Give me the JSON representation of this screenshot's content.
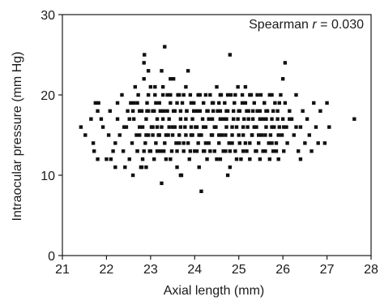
{
  "chart_data": {
    "type": "scatter",
    "title": "",
    "xlabel": "Axial length (mm)",
    "ylabel": "Intraocular pressure (mm Hg)",
    "xlim": [
      21,
      28
    ],
    "ylim": [
      0,
      30
    ],
    "xticks": [
      21,
      22,
      23,
      24,
      25,
      26,
      27,
      28
    ],
    "yticks": [
      0,
      10,
      20,
      30
    ],
    "grid": false,
    "annotation": {
      "prefix": "Spearman ",
      "variable": "r",
      "suffix": " = 0.030"
    },
    "marker_color": "#111111",
    "points": [
      [
        21.42,
        16
      ],
      [
        21.52,
        15
      ],
      [
        21.65,
        17
      ],
      [
        21.7,
        14
      ],
      [
        21.72,
        13
      ],
      [
        21.75,
        19
      ],
      [
        21.8,
        18
      ],
      [
        21.82,
        19
      ],
      [
        21.92,
        16
      ],
      [
        22.0,
        12
      ],
      [
        22.05,
        15
      ],
      [
        22.1,
        12
      ],
      [
        22.15,
        13
      ],
      [
        22.2,
        14
      ],
      [
        22.25,
        17
      ],
      [
        22.3,
        15
      ],
      [
        22.35,
        20
      ],
      [
        22.38,
        13
      ],
      [
        22.42,
        11
      ],
      [
        22.45,
        16
      ],
      [
        22.48,
        18
      ],
      [
        22.52,
        12
      ],
      [
        22.55,
        19
      ],
      [
        22.58,
        14
      ],
      [
        22.62,
        17
      ],
      [
        22.65,
        21
      ],
      [
        22.68,
        15
      ],
      [
        22.7,
        13
      ],
      [
        22.72,
        20
      ],
      [
        22.75,
        16
      ],
      [
        22.78,
        11
      ],
      [
        22.8,
        18
      ],
      [
        22.82,
        12
      ],
      [
        22.85,
        22
      ],
      [
        22.88,
        14
      ],
      [
        22.9,
        17
      ],
      [
        22.92,
        19
      ],
      [
        22.95,
        15
      ],
      [
        22.98,
        13
      ],
      [
        23.0,
        21
      ],
      [
        23.02,
        16
      ],
      [
        23.05,
        18
      ],
      [
        23.08,
        12
      ],
      [
        23.1,
        20
      ],
      [
        23.12,
        14
      ],
      [
        23.15,
        17
      ],
      [
        23.18,
        15
      ],
      [
        23.2,
        19
      ],
      [
        23.22,
        13
      ],
      [
        23.25,
        16
      ],
      [
        23.28,
        21
      ],
      [
        23.3,
        18
      ],
      [
        23.32,
        14
      ],
      [
        23.35,
        12
      ],
      [
        23.38,
        20
      ],
      [
        23.4,
        15
      ],
      [
        23.42,
        17
      ],
      [
        23.45,
        19
      ],
      [
        23.48,
        13
      ],
      [
        23.5,
        16
      ],
      [
        23.52,
        22
      ],
      [
        23.55,
        18
      ],
      [
        23.58,
        14
      ],
      [
        23.6,
        11
      ],
      [
        23.62,
        20
      ],
      [
        23.65,
        15
      ],
      [
        23.68,
        17
      ],
      [
        23.7,
        10
      ],
      [
        23.72,
        19
      ],
      [
        23.75,
        13
      ],
      [
        23.78,
        16
      ],
      [
        23.8,
        21
      ],
      [
        23.82,
        18
      ],
      [
        23.85,
        14
      ],
      [
        23.88,
        12
      ],
      [
        23.9,
        20
      ],
      [
        23.92,
        15
      ],
      [
        23.95,
        17
      ],
      [
        23.98,
        19
      ],
      [
        24.0,
        13
      ],
      [
        24.02,
        16
      ],
      [
        24.05,
        18
      ],
      [
        24.08,
        14
      ],
      [
        24.1,
        11
      ],
      [
        24.12,
        20
      ],
      [
        24.15,
        15
      ],
      [
        24.18,
        17
      ],
      [
        24.2,
        19
      ],
      [
        24.22,
        13
      ],
      [
        24.25,
        16
      ],
      [
        24.28,
        12
      ],
      [
        24.3,
        18
      ],
      [
        24.32,
        14
      ],
      [
        24.35,
        20
      ],
      [
        24.38,
        15
      ],
      [
        24.4,
        17
      ],
      [
        24.42,
        19
      ],
      [
        24.45,
        13
      ],
      [
        24.48,
        16
      ],
      [
        24.5,
        21
      ],
      [
        24.52,
        18
      ],
      [
        24.55,
        14
      ],
      [
        24.58,
        12
      ],
      [
        24.6,
        20
      ],
      [
        24.62,
        15
      ],
      [
        24.65,
        17
      ],
      [
        24.68,
        19
      ],
      [
        24.7,
        13
      ],
      [
        24.72,
        16
      ],
      [
        24.75,
        18
      ],
      [
        24.78,
        14
      ],
      [
        24.8,
        11
      ],
      [
        24.82,
        20
      ],
      [
        24.85,
        15
      ],
      [
        24.88,
        17
      ],
      [
        24.9,
        19
      ],
      [
        24.92,
        13
      ],
      [
        24.95,
        16
      ],
      [
        24.98,
        21
      ],
      [
        25.0,
        18
      ],
      [
        25.02,
        14
      ],
      [
        25.05,
        12
      ],
      [
        25.08,
        20
      ],
      [
        25.1,
        15
      ],
      [
        25.12,
        17
      ],
      [
        25.15,
        19
      ],
      [
        25.18,
        13
      ],
      [
        25.2,
        16
      ],
      [
        25.22,
        18
      ],
      [
        25.25,
        14
      ],
      [
        25.28,
        20
      ],
      [
        25.3,
        15
      ],
      [
        25.32,
        17
      ],
      [
        25.35,
        19
      ],
      [
        25.38,
        13
      ],
      [
        25.4,
        16
      ],
      [
        25.42,
        18
      ],
      [
        25.45,
        14
      ],
      [
        25.48,
        12
      ],
      [
        25.5,
        20
      ],
      [
        25.52,
        15
      ],
      [
        25.55,
        17
      ],
      [
        25.58,
        19
      ],
      [
        25.6,
        13
      ],
      [
        25.62,
        16
      ],
      [
        25.65,
        18
      ],
      [
        25.68,
        14
      ],
      [
        25.7,
        20
      ],
      [
        25.72,
        15
      ],
      [
        25.75,
        17
      ],
      [
        25.78,
        13
      ],
      [
        25.8,
        16
      ],
      [
        25.82,
        19
      ],
      [
        25.85,
        14
      ],
      [
        25.88,
        18
      ],
      [
        25.9,
        12
      ],
      [
        25.92,
        16
      ],
      [
        25.95,
        20
      ],
      [
        25.98,
        15
      ],
      [
        26.0,
        17
      ],
      [
        26.02,
        13
      ],
      [
        26.05,
        19
      ],
      [
        26.08,
        16
      ],
      [
        26.1,
        14
      ],
      [
        26.15,
        18
      ],
      [
        26.2,
        17
      ],
      [
        26.25,
        15
      ],
      [
        26.3,
        20
      ],
      [
        26.35,
        13
      ],
      [
        26.4,
        16
      ],
      [
        26.45,
        18
      ],
      [
        26.5,
        14
      ],
      [
        26.55,
        17
      ],
      [
        26.6,
        15
      ],
      [
        26.65,
        13
      ],
      [
        26.7,
        19
      ],
      [
        26.75,
        16
      ],
      [
        26.8,
        14
      ],
      [
        26.85,
        18
      ],
      [
        26.95,
        14
      ],
      [
        27.0,
        19
      ],
      [
        27.05,
        16
      ],
      [
        27.62,
        17
      ],
      [
        22.85,
        24
      ],
      [
        22.86,
        25
      ],
      [
        23.25,
        23
      ],
      [
        23.32,
        26
      ],
      [
        23.65,
        20
      ],
      [
        23.85,
        23
      ],
      [
        24.55,
        19
      ],
      [
        24.8,
        25
      ],
      [
        24.75,
        10
      ],
      [
        24.15,
        8
      ],
      [
        23.25,
        9
      ],
      [
        23.68,
        10
      ],
      [
        22.8,
        11
      ],
      [
        22.9,
        11
      ],
      [
        26.05,
        24
      ],
      [
        26.0,
        22
      ],
      [
        25.15,
        21
      ],
      [
        22.95,
        23
      ],
      [
        23.45,
        22
      ],
      [
        23.1,
        21
      ],
      [
        22.62,
        19
      ],
      [
        26.4,
        12
      ],
      [
        22.2,
        11
      ],
      [
        22.6,
        10
      ],
      [
        21.8,
        12
      ],
      [
        21.88,
        17
      ],
      [
        22.08,
        18
      ],
      [
        22.25,
        19
      ],
      [
        22.4,
        16
      ],
      [
        22.52,
        17
      ],
      [
        22.7,
        19
      ],
      [
        22.82,
        16
      ],
      [
        22.95,
        18
      ],
      [
        23.05,
        16
      ],
      [
        23.15,
        16
      ],
      [
        23.28,
        17
      ],
      [
        23.42,
        16
      ],
      [
        23.55,
        16
      ],
      [
        23.68,
        16
      ],
      [
        23.8,
        17
      ],
      [
        23.92,
        16
      ],
      [
        24.05,
        16
      ],
      [
        24.2,
        16
      ],
      [
        24.32,
        17
      ],
      [
        24.45,
        16
      ],
      [
        24.58,
        17
      ],
      [
        24.72,
        17
      ],
      [
        24.85,
        16
      ],
      [
        24.98,
        17
      ],
      [
        25.1,
        16
      ],
      [
        25.22,
        17
      ],
      [
        25.35,
        16
      ],
      [
        25.48,
        17
      ],
      [
        25.62,
        17
      ],
      [
        25.75,
        16
      ],
      [
        25.88,
        17
      ],
      [
        26.02,
        16
      ],
      [
        26.15,
        17
      ],
      [
        26.3,
        16
      ],
      [
        22.75,
        15
      ],
      [
        22.9,
        15
      ],
      [
        23.05,
        15
      ],
      [
        23.2,
        15
      ],
      [
        23.35,
        15
      ],
      [
        23.5,
        15
      ],
      [
        23.65,
        14
      ],
      [
        23.8,
        15
      ],
      [
        23.95,
        15
      ],
      [
        24.1,
        15
      ],
      [
        24.25,
        14
      ],
      [
        24.4,
        15
      ],
      [
        24.55,
        15
      ],
      [
        24.7,
        15
      ],
      [
        24.85,
        14
      ],
      [
        25.0,
        15
      ],
      [
        25.15,
        14
      ],
      [
        25.3,
        15
      ],
      [
        25.45,
        15
      ],
      [
        25.6,
        15
      ],
      [
        25.75,
        14
      ],
      [
        25.9,
        15
      ],
      [
        22.6,
        18
      ],
      [
        22.75,
        18
      ],
      [
        22.92,
        18
      ],
      [
        23.08,
        18
      ],
      [
        23.22,
        18
      ],
      [
        23.38,
        18
      ],
      [
        23.52,
        18
      ],
      [
        23.68,
        18
      ],
      [
        23.82,
        18
      ],
      [
        23.98,
        18
      ],
      [
        24.12,
        18
      ],
      [
        24.28,
        18
      ],
      [
        24.42,
        18
      ],
      [
        24.58,
        18
      ],
      [
        24.72,
        18
      ],
      [
        24.88,
        18
      ],
      [
        25.02,
        18
      ],
      [
        25.18,
        18
      ],
      [
        25.32,
        18
      ],
      [
        25.48,
        18
      ],
      [
        25.62,
        18
      ],
      [
        25.78,
        18
      ],
      [
        22.7,
        13
      ],
      [
        22.85,
        13
      ],
      [
        23.0,
        13
      ],
      [
        23.15,
        13
      ],
      [
        23.3,
        13
      ],
      [
        23.45,
        12
      ],
      [
        23.6,
        13
      ],
      [
        23.75,
        14
      ],
      [
        23.9,
        13
      ],
      [
        24.05,
        13
      ],
      [
        24.2,
        13
      ],
      [
        24.35,
        13
      ],
      [
        24.5,
        12
      ],
      [
        24.65,
        13
      ],
      [
        24.8,
        13
      ],
      [
        24.95,
        12
      ],
      [
        25.1,
        13
      ],
      [
        25.25,
        12
      ],
      [
        25.4,
        13
      ],
      [
        25.55,
        13
      ],
      [
        25.7,
        12
      ],
      [
        25.85,
        13
      ],
      [
        22.95,
        20
      ],
      [
        23.12,
        19
      ],
      [
        23.28,
        20
      ],
      [
        23.45,
        20
      ],
      [
        23.6,
        19
      ],
      [
        23.75,
        20
      ],
      [
        23.92,
        19
      ],
      [
        24.08,
        20
      ],
      [
        24.25,
        20
      ],
      [
        24.4,
        19
      ],
      [
        24.58,
        20
      ],
      [
        24.75,
        20
      ],
      [
        24.92,
        20
      ],
      [
        25.08,
        19
      ],
      [
        25.25,
        20
      ],
      [
        25.42,
        20
      ],
      [
        25.58,
        19
      ],
      [
        25.75,
        20
      ],
      [
        25.92,
        19
      ]
    ]
  }
}
